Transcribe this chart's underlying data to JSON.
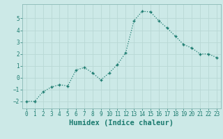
{
  "x": [
    0,
    1,
    2,
    3,
    4,
    5,
    6,
    7,
    8,
    9,
    10,
    11,
    12,
    13,
    14,
    15,
    16,
    17,
    18,
    19,
    20,
    21,
    22,
    23
  ],
  "y": [
    -2.0,
    -2.0,
    -1.2,
    -0.8,
    -0.6,
    -0.7,
    0.65,
    0.85,
    0.4,
    -0.2,
    0.4,
    1.1,
    2.1,
    4.8,
    5.6,
    5.55,
    4.8,
    4.2,
    3.5,
    2.8,
    2.5,
    2.0,
    2.0,
    1.7
  ],
  "line_color": "#1a7a6e",
  "marker": "+",
  "markersize": 3.5,
  "markeredgewidth": 1.0,
  "linewidth": 0.9,
  "linestyle": ":",
  "bg_color": "#cce9e7",
  "grid_color": "#b8d8d5",
  "xlabel": "Humidex (Indice chaleur)",
  "xlim": [
    -0.5,
    23.5
  ],
  "ylim": [
    -2.6,
    6.2
  ],
  "yticks": [
    -2,
    -1,
    0,
    1,
    2,
    3,
    4,
    5
  ],
  "xticks": [
    0,
    1,
    2,
    3,
    4,
    5,
    6,
    7,
    8,
    9,
    10,
    11,
    12,
    13,
    14,
    15,
    16,
    17,
    18,
    19,
    20,
    21,
    22,
    23
  ],
  "tick_fontsize": 5.5,
  "xlabel_fontsize": 7.5,
  "tick_color": "#1a7a6e",
  "label_color": "#1a7a6e",
  "spine_color": "#8ab8b5"
}
